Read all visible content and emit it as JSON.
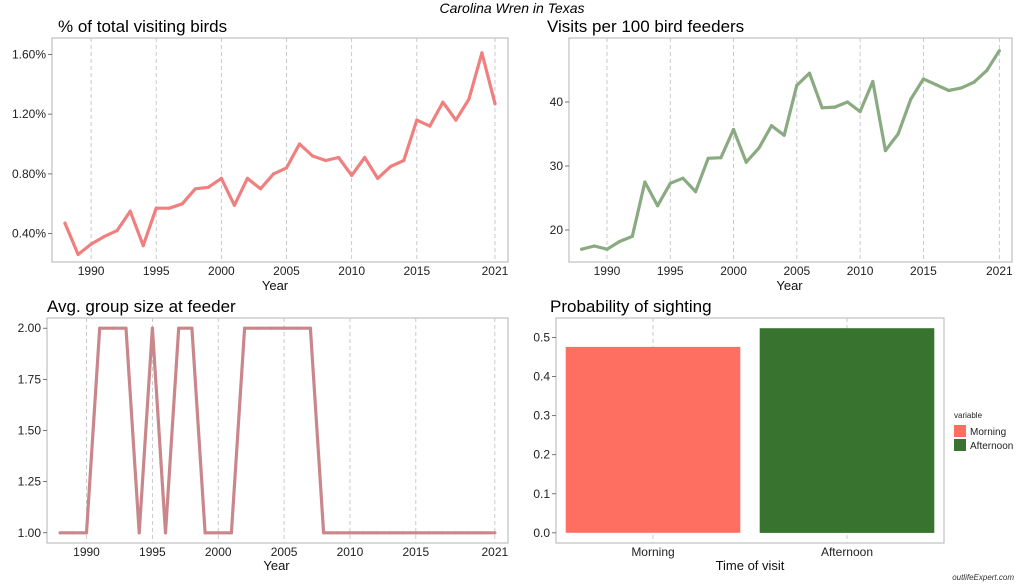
{
  "title": "Carolina Wren in Texas",
  "watermark": "outlifeExpert.com",
  "chart_data": [
    {
      "type": "line",
      "title": "% of total visiting birds",
      "xlabel": "Year",
      "ylabel": "",
      "color": "#f08080",
      "xticks": [
        1990,
        1995,
        2000,
        2005,
        2010,
        2015,
        2021
      ],
      "yticks": [
        0.4,
        0.8,
        1.2,
        1.6
      ],
      "ytick_labels": [
        "0.40%",
        "0.80%",
        "1.20%",
        "1.60%"
      ],
      "xlim": [
        1987,
        2022
      ],
      "ylim": [
        0.21,
        1.71
      ],
      "grid": "vertical dashed",
      "x": [
        1988,
        1989,
        1990,
        1991,
        1992,
        1993,
        1994,
        1995,
        1996,
        1997,
        1998,
        1999,
        2000,
        2001,
        2002,
        2003,
        2004,
        2005,
        2006,
        2007,
        2008,
        2009,
        2010,
        2011,
        2012,
        2013,
        2014,
        2015,
        2016,
        2017,
        2018,
        2019,
        2020,
        2021
      ],
      "y": [
        0.47,
        0.26,
        0.33,
        0.38,
        0.42,
        0.55,
        0.32,
        0.57,
        0.57,
        0.6,
        0.7,
        0.71,
        0.77,
        0.59,
        0.77,
        0.7,
        0.8,
        0.84,
        1.0,
        0.92,
        0.89,
        0.91,
        0.79,
        0.91,
        0.77,
        0.85,
        0.89,
        1.16,
        1.12,
        1.28,
        1.16,
        1.3,
        1.61,
        1.27
      ]
    },
    {
      "type": "line",
      "title": "Visits per 100 bird feeders",
      "xlabel": "Year",
      "ylabel": "",
      "color": "#8aaa82",
      "xticks": [
        1990,
        1995,
        2000,
        2005,
        2010,
        2015,
        2021
      ],
      "yticks": [
        20,
        30,
        40
      ],
      "ytick_labels": [
        "20",
        "30",
        "40"
      ],
      "xlim": [
        1987,
        2022
      ],
      "ylim": [
        15,
        50
      ],
      "grid": "vertical dashed",
      "x": [
        1988,
        1989,
        1990,
        1991,
        1992,
        1993,
        1994,
        1995,
        1996,
        1997,
        1998,
        1999,
        2000,
        2001,
        2002,
        2003,
        2004,
        2005,
        2006,
        2007,
        2008,
        2009,
        2010,
        2011,
        2012,
        2013,
        2014,
        2015,
        2016,
        2017,
        2018,
        2019,
        2020,
        2021
      ],
      "y": [
        17.0,
        17.5,
        17.0,
        18.2,
        19.0,
        27.5,
        23.8,
        27.3,
        28.1,
        26.0,
        31.2,
        31.3,
        35.7,
        30.6,
        32.8,
        36.3,
        34.8,
        42.6,
        44.5,
        39.1,
        39.2,
        40.0,
        38.5,
        43.2,
        32.4,
        35.0,
        40.4,
        43.6,
        42.7,
        41.8,
        42.2,
        43.1,
        44.9,
        48.0
      ]
    },
    {
      "type": "line",
      "title": "Avg. group size at feeder",
      "xlabel": "Year",
      "ylabel": "",
      "color": "#c9878c",
      "xticks": [
        1990,
        1995,
        2000,
        2005,
        2010,
        2015,
        2021
      ],
      "yticks": [
        1.0,
        1.25,
        1.5,
        1.75,
        2.0
      ],
      "ytick_labels": [
        "1.00",
        "1.25",
        "1.50",
        "1.75",
        "2.00"
      ],
      "xlim": [
        1987,
        2022
      ],
      "ylim": [
        0.95,
        2.05
      ],
      "grid": "vertical dashed",
      "x": [
        1988,
        1989,
        1990,
        1991,
        1992,
        1993,
        1994,
        1995,
        1996,
        1997,
        1998,
        1999,
        2000,
        2001,
        2002,
        2003,
        2004,
        2005,
        2006,
        2007,
        2008,
        2009,
        2010,
        2011,
        2012,
        2013,
        2014,
        2015,
        2016,
        2017,
        2018,
        2019,
        2020,
        2021
      ],
      "y": [
        1,
        1,
        1,
        2,
        2,
        2,
        1,
        2,
        1,
        2,
        2,
        1,
        1,
        1,
        2,
        2,
        2,
        2,
        2,
        2,
        1,
        1,
        1,
        1,
        1,
        1,
        1,
        1,
        1,
        1,
        1,
        1,
        1,
        1
      ]
    },
    {
      "type": "bar",
      "title": "Probability of sighting",
      "xlabel": "Time of visit",
      "ylabel": "",
      "categories": [
        "Morning",
        "Afternoon"
      ],
      "values": [
        0.476,
        0.524
      ],
      "colors": [
        "#ff6f61",
        "#38732f"
      ],
      "yticks": [
        0.0,
        0.1,
        0.2,
        0.3,
        0.4,
        0.5
      ],
      "ytick_labels": [
        "0.0",
        "0.1",
        "0.2",
        "0.3",
        "0.4",
        "0.5"
      ],
      "ylim": [
        -0.026,
        0.55
      ],
      "grid": "vertical dashed",
      "legend": {
        "title": "variable",
        "entries": [
          "Morning",
          "Afternoon"
        ],
        "position": "right"
      }
    }
  ]
}
